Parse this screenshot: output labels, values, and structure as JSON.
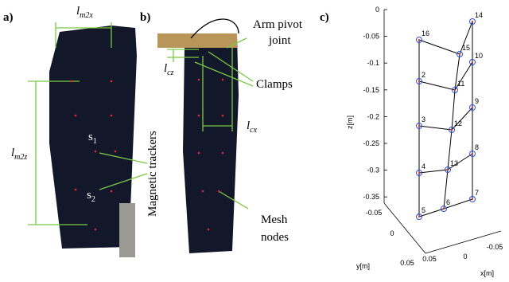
{
  "panel_a": {
    "label": "a)",
    "width_label": "l",
    "width_sub": "m2x",
    "height_label": "l",
    "height_sub": "m2z",
    "tracker_1": "s",
    "tracker_1_sub": "1",
    "tracker_2": "s",
    "tracker_2_sub": "2",
    "trackers_caption": "Magnetic trackers"
  },
  "panel_b": {
    "label": "b)",
    "pivot_line_1": "Arm pivot",
    "pivot_line_2": "joint",
    "cz_label": "l",
    "cz_sub": "cz",
    "clamps": "Clamps",
    "cx_label": "l",
    "cx_sub": "cx",
    "nodes_line_1": "Mesh",
    "nodes_line_2": "nodes"
  },
  "panel_c": {
    "label": "c)",
    "z_axis": "z[m]",
    "y_axis": "y[m]",
    "x_axis": "x[m]",
    "z_ticks": [
      "0",
      "-0.05",
      "-0.1",
      "-0.15",
      "-0.2",
      "-0.25",
      "-0.3",
      "-0.35"
    ],
    "y_ticks": [
      "-0.05",
      "0",
      "0.05"
    ],
    "x_ticks": [
      "0.05",
      "0",
      "-0.05"
    ],
    "nodes": [
      "16",
      "2",
      "3",
      "4",
      "5",
      "15",
      "11",
      "12",
      "13",
      "6",
      "14",
      "10",
      "9",
      "8",
      "7"
    ]
  }
}
